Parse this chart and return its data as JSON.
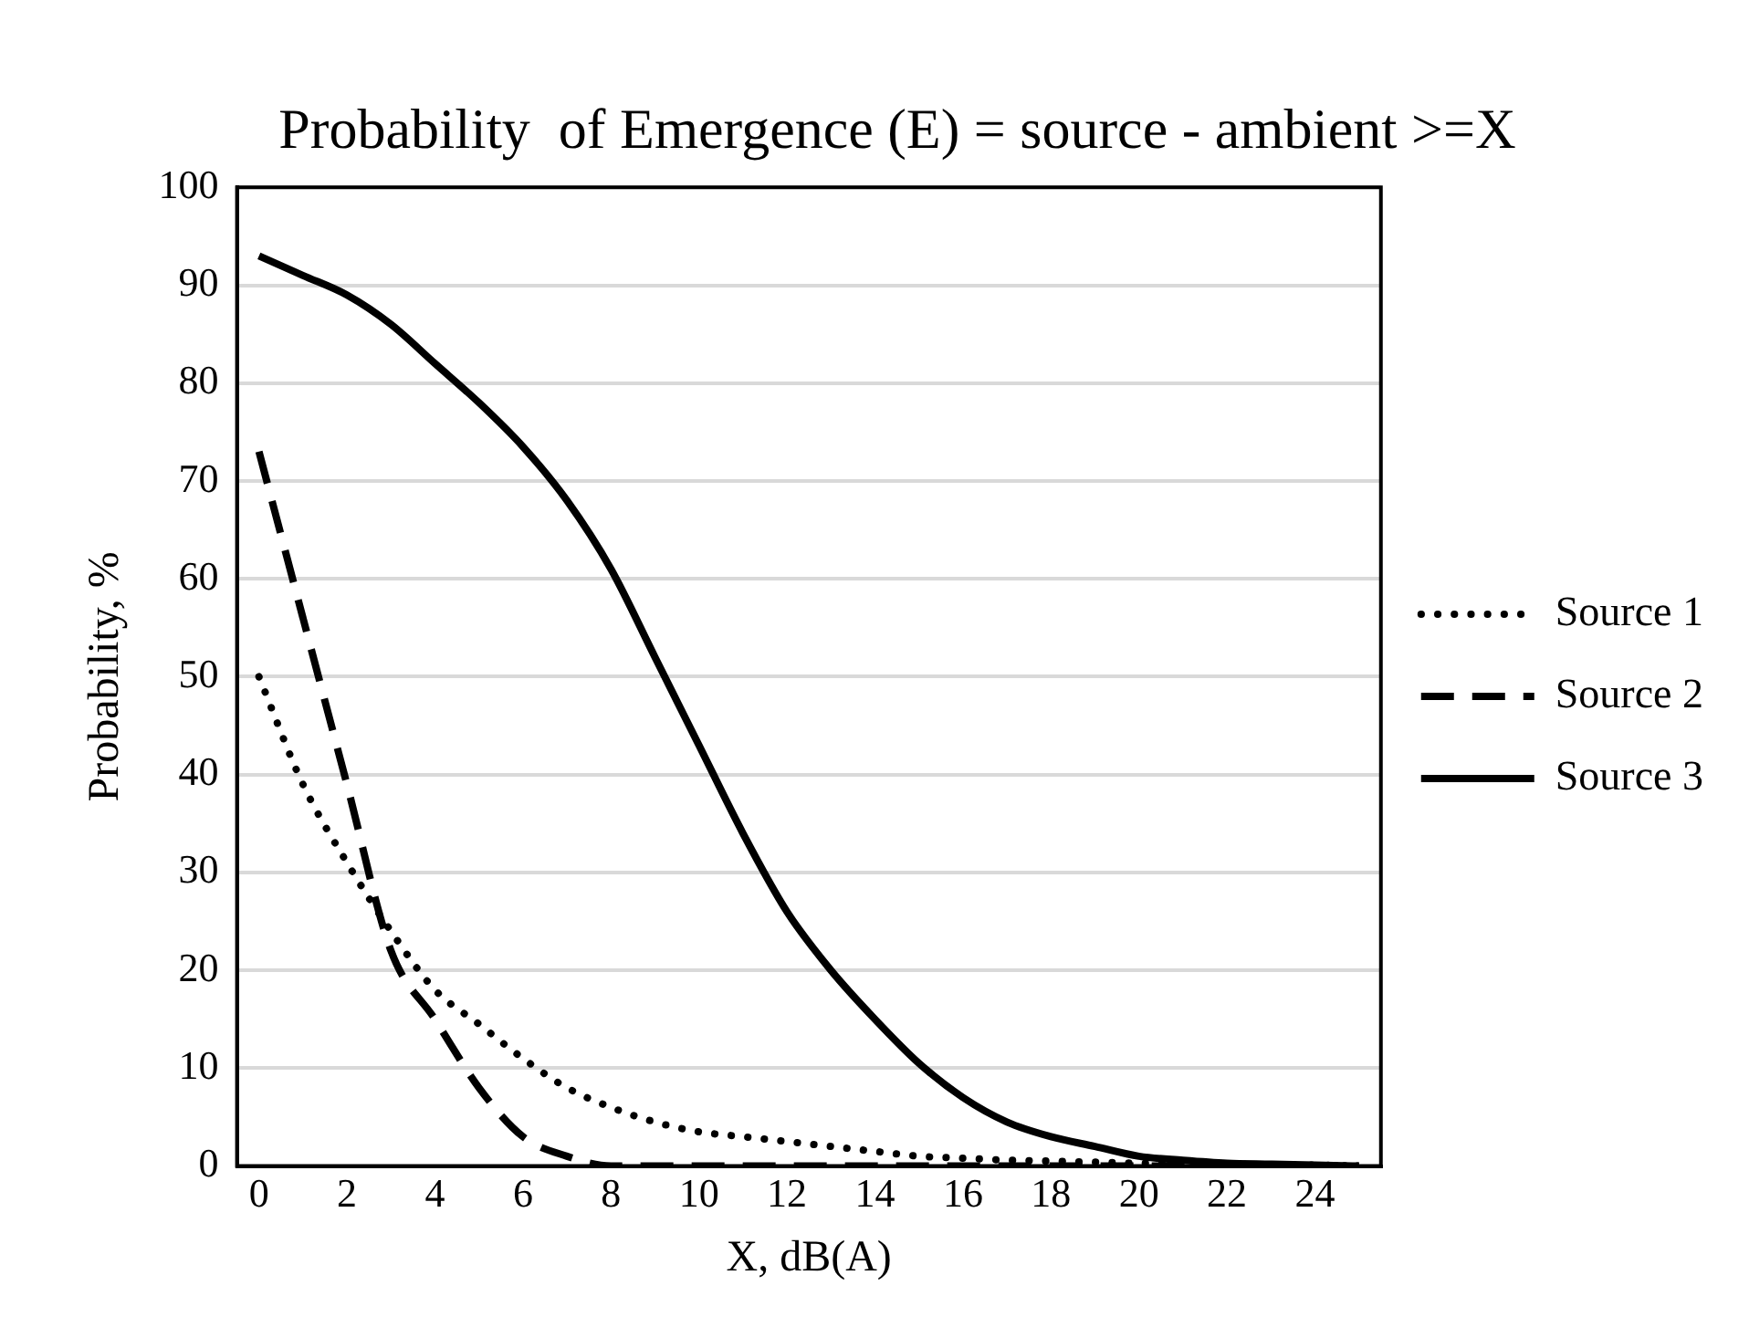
{
  "chart_data": {
    "type": "line",
    "title": "Probability  of Emergence (E) = source - ambient >=X",
    "xlabel": "X, dB(A)",
    "ylabel": "Probability, %",
    "x": [
      0,
      1,
      2,
      3,
      4,
      5,
      6,
      7,
      8,
      9,
      10,
      11,
      12,
      13,
      14,
      15,
      16,
      17,
      18,
      19,
      20,
      21,
      22,
      23,
      24,
      25
    ],
    "series": [
      {
        "name": "Source 1",
        "color": "#000000",
        "line_style": "dotted",
        "values": [
          50,
          39,
          31,
          24,
          18,
          14.5,
          11,
          8,
          6,
          4.5,
          3.5,
          3,
          2.5,
          2,
          1.5,
          1,
          0.8,
          0.6,
          0.5,
          0.4,
          0.3,
          0.2,
          0.2,
          0.1,
          0.1,
          0
        ]
      },
      {
        "name": "Source 2",
        "color": "#000000",
        "line_style": "dashed",
        "values": [
          73,
          56,
          39,
          22,
          15,
          8,
          3,
          1,
          0,
          0,
          0,
          0,
          0,
          0,
          0,
          0,
          0,
          0,
          0,
          0,
          0,
          0,
          0,
          0,
          0,
          0
        ]
      },
      {
        "name": "Source 3",
        "color": "#000000",
        "line_style": "solid",
        "values": [
          93,
          91,
          89,
          86,
          82,
          78,
          73.5,
          68,
          61,
          52,
          43,
          34,
          26,
          20,
          15,
          10.5,
          7,
          4.5,
          3,
          2,
          1,
          0.6,
          0.3,
          0.2,
          0.1,
          0
        ]
      }
    ],
    "xlim": [
      -0.5,
      25.5
    ],
    "xticks": [
      0,
      2,
      4,
      6,
      8,
      10,
      12,
      14,
      16,
      18,
      20,
      22,
      24
    ],
    "ylim": [
      0,
      100
    ],
    "yticks": [
      0,
      10,
      20,
      30,
      40,
      50,
      60,
      70,
      80,
      90,
      100
    ],
    "grid": "y",
    "legend": "right",
    "marker": "none"
  }
}
